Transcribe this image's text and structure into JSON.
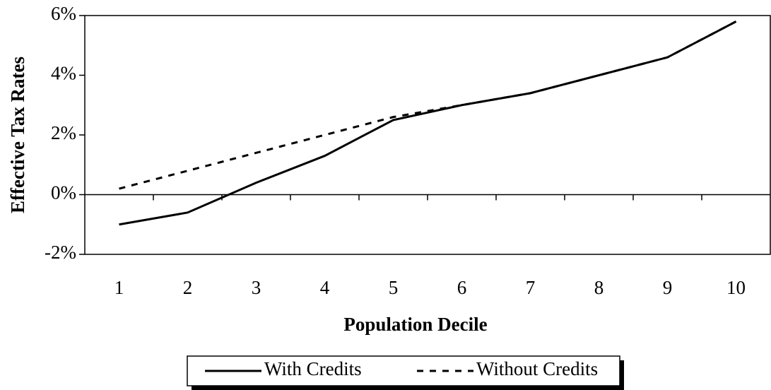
{
  "chart_data": {
    "type": "line",
    "y_label": "Effective Tax Rates",
    "x_label": "Population Decile",
    "categories": [
      "1",
      "2",
      "3",
      "4",
      "5",
      "6",
      "7",
      "8",
      "9",
      "10"
    ],
    "series": [
      {
        "name": "With Credits",
        "color": "#000000",
        "line_style": "solid",
        "values": [
          -1.0,
          -0.6,
          0.4,
          1.3,
          2.5,
          3.0,
          3.4,
          4.0,
          4.6,
          5.8
        ]
      },
      {
        "name": "Without Credits",
        "color": "#000000",
        "line_style": "dashed",
        "values": [
          0.2,
          0.8,
          1.4,
          2.0,
          2.6,
          3.0,
          3.4,
          4.0,
          4.6,
          5.8
        ]
      }
    ],
    "ylim": [
      -2,
      6
    ],
    "yticks": [
      {
        "value": -2,
        "label": "-2%"
      },
      {
        "value": 0,
        "label": "0%"
      },
      {
        "value": 2,
        "label": "2%"
      },
      {
        "value": 4,
        "label": "4%"
      },
      {
        "value": 6,
        "label": "6%"
      }
    ],
    "legend": "bottom"
  }
}
